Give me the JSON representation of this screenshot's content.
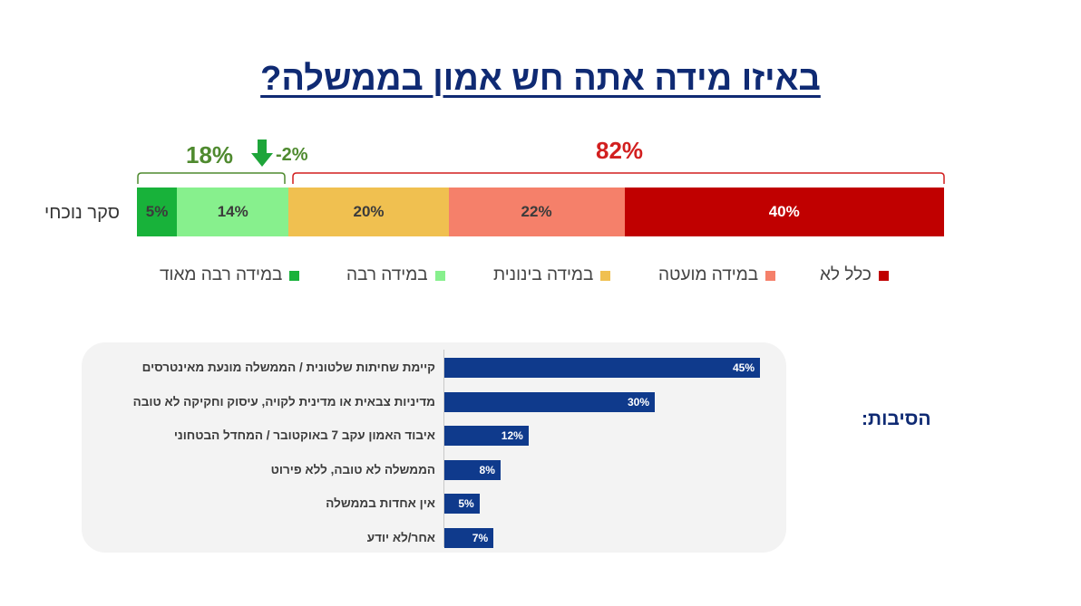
{
  "title": "באיזו מידה אתה חש אמון בממשלה?",
  "row_label": "סקר נוכחי",
  "groups": {
    "agree_total": "18%",
    "agree_change": "-2%",
    "disagree_total": "82%"
  },
  "colors": {
    "title": "#0f2a73",
    "agree_group": "#4f8a2f",
    "disagree_group": "#d21f1f",
    "reasons_bar": "#0f3a8c"
  },
  "chart_data": [
    {
      "type": "bar",
      "orientation": "horizontal",
      "stacked": true,
      "title": "באיזו מידה אתה חש אמון בממשלה?",
      "categories": [
        "סקר נוכחי"
      ],
      "series": [
        {
          "name": "במידה רבה מאוד",
          "values": [
            5
          ],
          "label": "5%",
          "color": "#18b23a"
        },
        {
          "name": "במידה רבה",
          "values": [
            14
          ],
          "label": "14%",
          "color": "#87f08d"
        },
        {
          "name": "במידה בינונית",
          "values": [
            20
          ],
          "label": "20%",
          "color": "#f0c050"
        },
        {
          "name": "במידה מועטה",
          "values": [
            22
          ],
          "label": "22%",
          "color": "#f5806a"
        },
        {
          "name": "כלל לא",
          "values": [
            40
          ],
          "label": "40%",
          "color": "#c00000"
        }
      ],
      "legend_position": "bottom"
    },
    {
      "type": "bar",
      "orientation": "horizontal",
      "title": "הסיבות:",
      "categories": [
        "קיימת שחיתות שלטונית / הממשלה מונעת מאינטרסים",
        "מדיניות צבאית או מדינית לקויה, עיסוק וחקיקה לא טובה",
        "איבוד האמון עקב 7 באוקטובר / המחדל הבטחוני",
        "הממשלה לא טובה, ללא פירוט",
        "אין אחדות בממשלה",
        "אחר/לא יודע"
      ],
      "values": [
        45,
        30,
        12,
        8,
        5,
        7
      ],
      "value_labels": [
        "45%",
        "30%",
        "12%",
        "8%",
        "5%",
        "7%"
      ],
      "xlim": [
        0,
        50
      ]
    }
  ]
}
